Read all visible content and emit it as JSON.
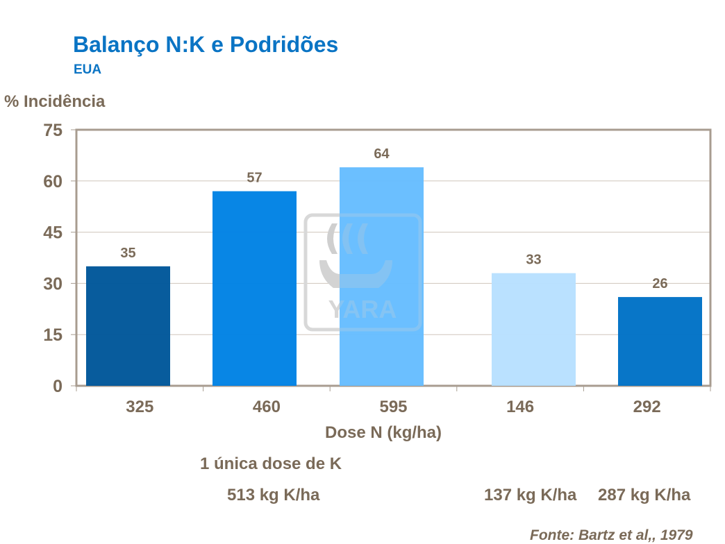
{
  "chart_data": {
    "type": "bar",
    "title": "Balanço N:K e Podridões",
    "subtitle": "EUA",
    "ylabel": "% Incidência",
    "xlabel": "Dose N (kg/ha)",
    "categories": [
      "325",
      "460",
      "595",
      "146",
      "292"
    ],
    "values": [
      35,
      57,
      64,
      33,
      26
    ],
    "colors": [
      "#00579a",
      "#0082e4",
      "#66bdff",
      "#b8e0ff",
      "#0072c6"
    ],
    "ylim": [
      0,
      75
    ],
    "yticks": [
      0,
      15,
      30,
      45,
      60,
      75
    ],
    "grid": true,
    "annotations": {
      "single_k_dose": "1 única dose de K",
      "k_513": "513 kg K/ha",
      "k_137": "137 kg K/ha",
      "k_287": "287 kg K/ha"
    },
    "source": "Fonte: Bartz et al,, 1979",
    "watermark": "YARA"
  }
}
